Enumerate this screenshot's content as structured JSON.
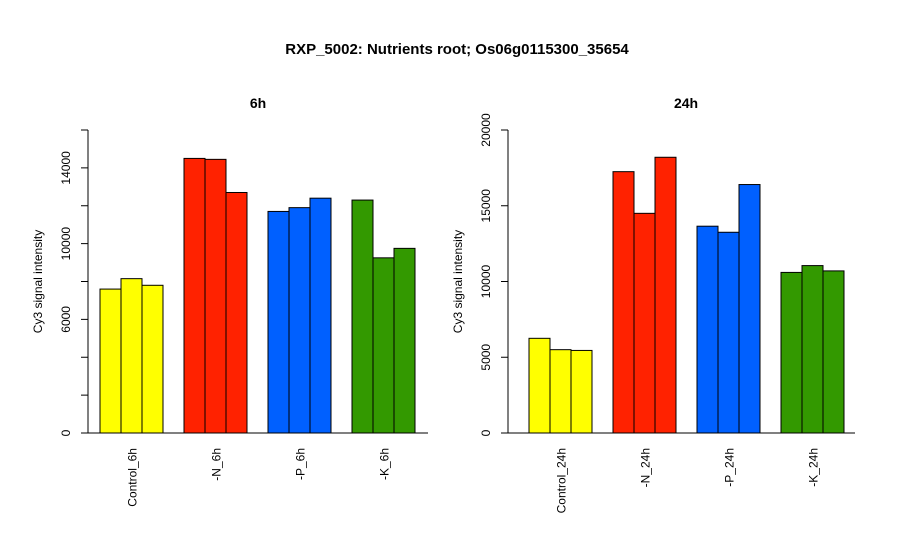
{
  "title": "RXP_5002: Nutrients root; Os06g0115300_35654",
  "chart_data": [
    {
      "type": "bar",
      "title": "6h",
      "ylabel": "Cy3 signal intensity",
      "ylim": [
        0,
        16000
      ],
      "yticks": [
        0,
        6000,
        10000,
        14000
      ],
      "categories": [
        "Control_6h",
        "-N_6h",
        "-P_6h",
        "-K_6h"
      ],
      "colors": [
        "#ffff00",
        "#ff2200",
        "#0060ff",
        "#339900"
      ],
      "groups": [
        {
          "category": "Control_6h",
          "values": [
            7600,
            8150,
            7800
          ]
        },
        {
          "category": "-N_6h",
          "values": [
            14500,
            14450,
            12700
          ]
        },
        {
          "category": "-P_6h",
          "values": [
            11700,
            11900,
            12400
          ]
        },
        {
          "category": "-K_6h",
          "values": [
            12300,
            9250,
            9750
          ]
        }
      ]
    },
    {
      "type": "bar",
      "title": "24h",
      "ylabel": "Cy3 signal intensity",
      "ylim": [
        0,
        20000
      ],
      "yticks": [
        0,
        5000,
        10000,
        15000,
        20000
      ],
      "categories": [
        "Control_24h",
        "-N_24h",
        "-P_24h",
        "-K_24h"
      ],
      "colors": [
        "#ffff00",
        "#ff2200",
        "#0060ff",
        "#339900"
      ],
      "groups": [
        {
          "category": "Control_24h",
          "values": [
            6250,
            5500,
            5450
          ]
        },
        {
          "category": "-N_24h",
          "values": [
            17250,
            14500,
            18200
          ]
        },
        {
          "category": "-P_24h",
          "values": [
            13650,
            13250,
            16400
          ]
        },
        {
          "category": "-K_24h",
          "values": [
            10600,
            11050,
            10700
          ]
        }
      ]
    }
  ]
}
